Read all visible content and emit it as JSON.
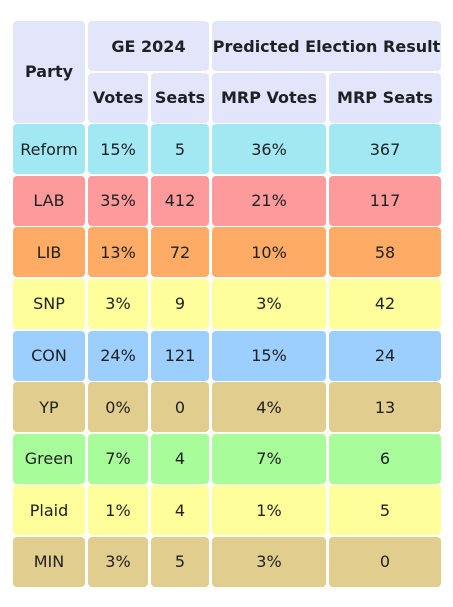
{
  "header": {
    "party": "Party",
    "ge2024": "GE 2024",
    "predicted": "Predicted Election Result",
    "votes": "Votes",
    "seats": "Seats",
    "mrp_votes": "MRP Votes",
    "mrp_seats": "MRP Seats"
  },
  "rows": [
    {
      "party": "Reform",
      "votes": "15%",
      "seats": "5",
      "mrp_votes": "36%",
      "mrp_seats": "367",
      "color": "#a2e8f3"
    },
    {
      "party": "LAB",
      "votes": "35%",
      "seats": "412",
      "mrp_votes": "21%",
      "mrp_seats": "117",
      "color": "#fd9a9b"
    },
    {
      "party": "LIB",
      "votes": "13%",
      "seats": "72",
      "mrp_votes": "10%",
      "mrp_seats": "58",
      "color": "#feab66"
    },
    {
      "party": "SNP",
      "votes": "3%",
      "seats": "9",
      "mrp_votes": "3%",
      "mrp_seats": "42",
      "color": "#fefe9b"
    },
    {
      "party": "CON",
      "votes": "24%",
      "seats": "121",
      "mrp_votes": "15%",
      "mrp_seats": "24",
      "color": "#9ccefe"
    },
    {
      "party": "YP",
      "votes": "0%",
      "seats": "0",
      "mrp_votes": "4%",
      "mrp_seats": "13",
      "color": "#e1cd8e"
    },
    {
      "party": "Green",
      "votes": "7%",
      "seats": "4",
      "mrp_votes": "7%",
      "mrp_seats": "6",
      "color": "#a8fd9a"
    },
    {
      "party": "Plaid",
      "votes": "1%",
      "seats": "4",
      "mrp_votes": "1%",
      "mrp_seats": "5",
      "color": "#fefe9b"
    },
    {
      "party": "MIN",
      "votes": "3%",
      "seats": "5",
      "mrp_votes": "3%",
      "mrp_seats": "0",
      "color": "#e1cd8e"
    }
  ]
}
